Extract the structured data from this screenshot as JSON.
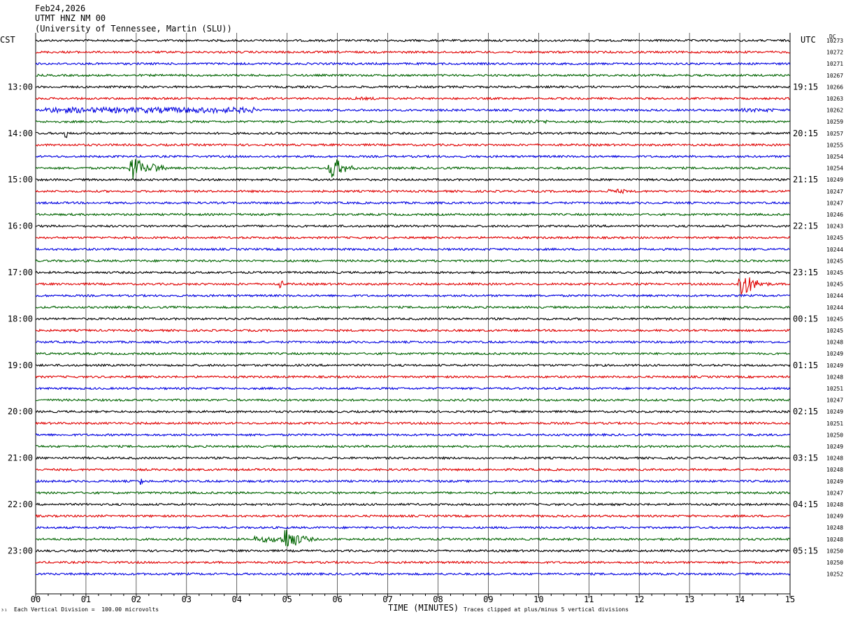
{
  "header": {
    "date": "Feb24,2026",
    "station": "UTMT HNZ NM 00",
    "network": "(University of Tennessee, Martin (SLU))"
  },
  "left_timezone": "CST",
  "right_timezone": "UTC",
  "dc_header": "DC",
  "footer": {
    "scale_note": "Each Vertical Division =  100.00 microvolts",
    "xlabel": "TIME (MINUTES)",
    "clip_note": "Traces clipped at plus/minus 5 vertical divisions",
    "logo_mark": "³¹"
  },
  "colors": {
    "trace_cycle": [
      "#000000",
      "#e00000",
      "#0000e0",
      "#006400"
    ],
    "grid": "#000000",
    "background": "#ffffff"
  },
  "chart_data": {
    "type": "line",
    "chart_kind": "helicorder",
    "x_range_minutes": [
      0,
      15
    ],
    "x_ticks": [
      "00",
      "01",
      "02",
      "03",
      "04",
      "05",
      "06",
      "07",
      "08",
      "09",
      "10",
      "11",
      "12",
      "13",
      "14",
      "15"
    ],
    "vertical_grid": true,
    "row_count": 47,
    "row_minutes": 15,
    "left_hour_labels": [
      "13:00",
      "14:00",
      "15:00",
      "16:00",
      "17:00",
      "18:00",
      "19:00",
      "20:00",
      "21:00",
      "22:00",
      "23:00"
    ],
    "right_hour_labels": [
      "19:15",
      "20:15",
      "21:15",
      "22:15",
      "23:15",
      "00:15",
      "01:15",
      "02:15",
      "03:15",
      "04:15",
      "05:15"
    ],
    "hour_label_first_row": 4,
    "hour_label_every": 4,
    "dc_offsets": [
      "10273",
      "10272",
      "10271",
      "10267",
      "10266",
      "10263",
      "10262",
      "10259",
      "10257",
      "10255",
      "10254",
      "10254",
      "10249",
      "10247",
      "10247",
      "10246",
      "10243",
      "10245",
      "10244",
      "10245",
      "10245",
      "10245",
      "10244",
      "10244",
      "10245",
      "10245",
      "10248",
      "10249",
      "10249",
      "10248",
      "10251",
      "10247",
      "10249",
      "10251",
      "10250",
      "10249",
      "10248",
      "10248",
      "10249",
      "10247",
      "10248",
      "10249",
      "10248",
      "10248",
      "10250",
      "10250",
      "10252"
    ],
    "base_noise": 1.5,
    "events": [
      {
        "row": 5,
        "minute": 6.3,
        "amp": 2,
        "dur": 0.5,
        "kind": "burst"
      },
      {
        "row": 6,
        "minute": 0.2,
        "amp": 4,
        "dur": 4.2,
        "kind": "noise"
      },
      {
        "row": 6,
        "minute": 13.9,
        "amp": 2.5,
        "dur": 0.8,
        "kind": "noise"
      },
      {
        "row": 7,
        "minute": 9.4,
        "amp": 2.5,
        "dur": 0.8,
        "kind": "noise"
      },
      {
        "row": 8,
        "minute": 0.6,
        "amp": 5,
        "dur": 0.1,
        "kind": "spike"
      },
      {
        "row": 11,
        "minute": 1.92,
        "amp": 22,
        "dur": 0.45,
        "kind": "quake"
      },
      {
        "row": 11,
        "minute": 2.35,
        "amp": 9,
        "dur": 0.4,
        "kind": "quake"
      },
      {
        "row": 11,
        "minute": 5.88,
        "amp": 20,
        "dur": 0.5,
        "kind": "quake"
      },
      {
        "row": 13,
        "minute": 11.35,
        "amp": 3,
        "dur": 0.4,
        "kind": "burst"
      },
      {
        "row": 21,
        "minute": 4.88,
        "amp": 4,
        "dur": 0.1,
        "kind": "spike"
      },
      {
        "row": 21,
        "minute": 14.02,
        "amp": 22,
        "dur": 0.55,
        "kind": "quake"
      },
      {
        "row": 38,
        "minute": 2.1,
        "amp": 4,
        "dur": 0.05,
        "kind": "spike"
      },
      {
        "row": 43,
        "minute": 4.95,
        "amp": 20,
        "dur": 0.6,
        "kind": "quake"
      },
      {
        "row": 43,
        "minute": 4.35,
        "amp": 4,
        "dur": 0.7,
        "kind": "noise"
      }
    ]
  }
}
